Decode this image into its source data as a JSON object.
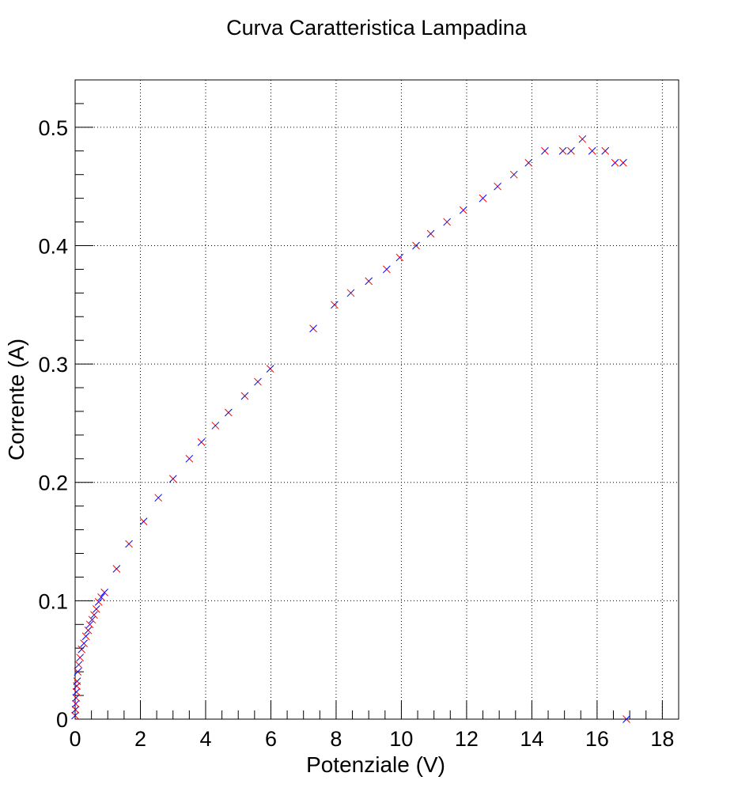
{
  "chart_data": {
    "type": "scatter",
    "title": "Curva Caratteristica Lampadina",
    "xlabel": "Potenziale (V)",
    "ylabel": "Corrente (A)",
    "xlim": [
      0,
      18.5
    ],
    "ylim": [
      0,
      0.54
    ],
    "x_ticks": [
      0,
      2,
      4,
      6,
      8,
      10,
      12,
      14,
      16,
      18
    ],
    "x_tick_labels": [
      "0",
      "2",
      "4",
      "6",
      "8",
      "10",
      "12",
      "14",
      "16",
      "18"
    ],
    "y_ticks": [
      0,
      0.1,
      0.2,
      0.3,
      0.4,
      0.5
    ],
    "y_tick_labels": [
      "0",
      "0.1",
      "0.2",
      "0.3",
      "0.4",
      "0.5"
    ],
    "grid": true,
    "marker": "x",
    "marker_colors": [
      "#ff0000",
      "#0000ff"
    ],
    "points": [
      [
        0.0,
        0.003
      ],
      [
        0.01,
        0.008
      ],
      [
        0.02,
        0.013
      ],
      [
        0.03,
        0.018
      ],
      [
        0.04,
        0.023
      ],
      [
        0.05,
        0.028
      ],
      [
        0.06,
        0.032
      ],
      [
        0.08,
        0.04
      ],
      [
        0.11,
        0.046
      ],
      [
        0.15,
        0.052
      ],
      [
        0.2,
        0.059
      ],
      [
        0.27,
        0.064
      ],
      [
        0.33,
        0.07
      ],
      [
        0.4,
        0.075
      ],
      [
        0.45,
        0.08
      ],
      [
        0.52,
        0.084
      ],
      [
        0.58,
        0.088
      ],
      [
        0.65,
        0.093
      ],
      [
        0.72,
        0.099
      ],
      [
        0.8,
        0.103
      ],
      [
        0.9,
        0.107
      ],
      [
        1.27,
        0.127
      ],
      [
        1.65,
        0.148
      ],
      [
        2.1,
        0.167
      ],
      [
        2.55,
        0.187
      ],
      [
        3.0,
        0.203
      ],
      [
        3.5,
        0.22
      ],
      [
        3.87,
        0.234
      ],
      [
        4.3,
        0.248
      ],
      [
        4.7,
        0.259
      ],
      [
        5.2,
        0.273
      ],
      [
        5.6,
        0.285
      ],
      [
        5.98,
        0.296
      ],
      [
        7.3,
        0.33
      ],
      [
        7.95,
        0.35
      ],
      [
        8.45,
        0.36
      ],
      [
        9.0,
        0.37
      ],
      [
        9.55,
        0.38
      ],
      [
        9.95,
        0.39
      ],
      [
        10.45,
        0.4
      ],
      [
        10.9,
        0.41
      ],
      [
        11.4,
        0.42
      ],
      [
        11.9,
        0.43
      ],
      [
        12.5,
        0.44
      ],
      [
        12.95,
        0.45
      ],
      [
        13.45,
        0.46
      ],
      [
        13.9,
        0.47
      ],
      [
        14.4,
        0.48
      ],
      [
        14.95,
        0.48
      ],
      [
        15.2,
        0.48
      ],
      [
        15.55,
        0.49
      ],
      [
        15.85,
        0.48
      ],
      [
        16.25,
        0.48
      ],
      [
        16.55,
        0.47
      ],
      [
        16.8,
        0.47
      ],
      [
        16.9,
        0.0
      ]
    ]
  }
}
